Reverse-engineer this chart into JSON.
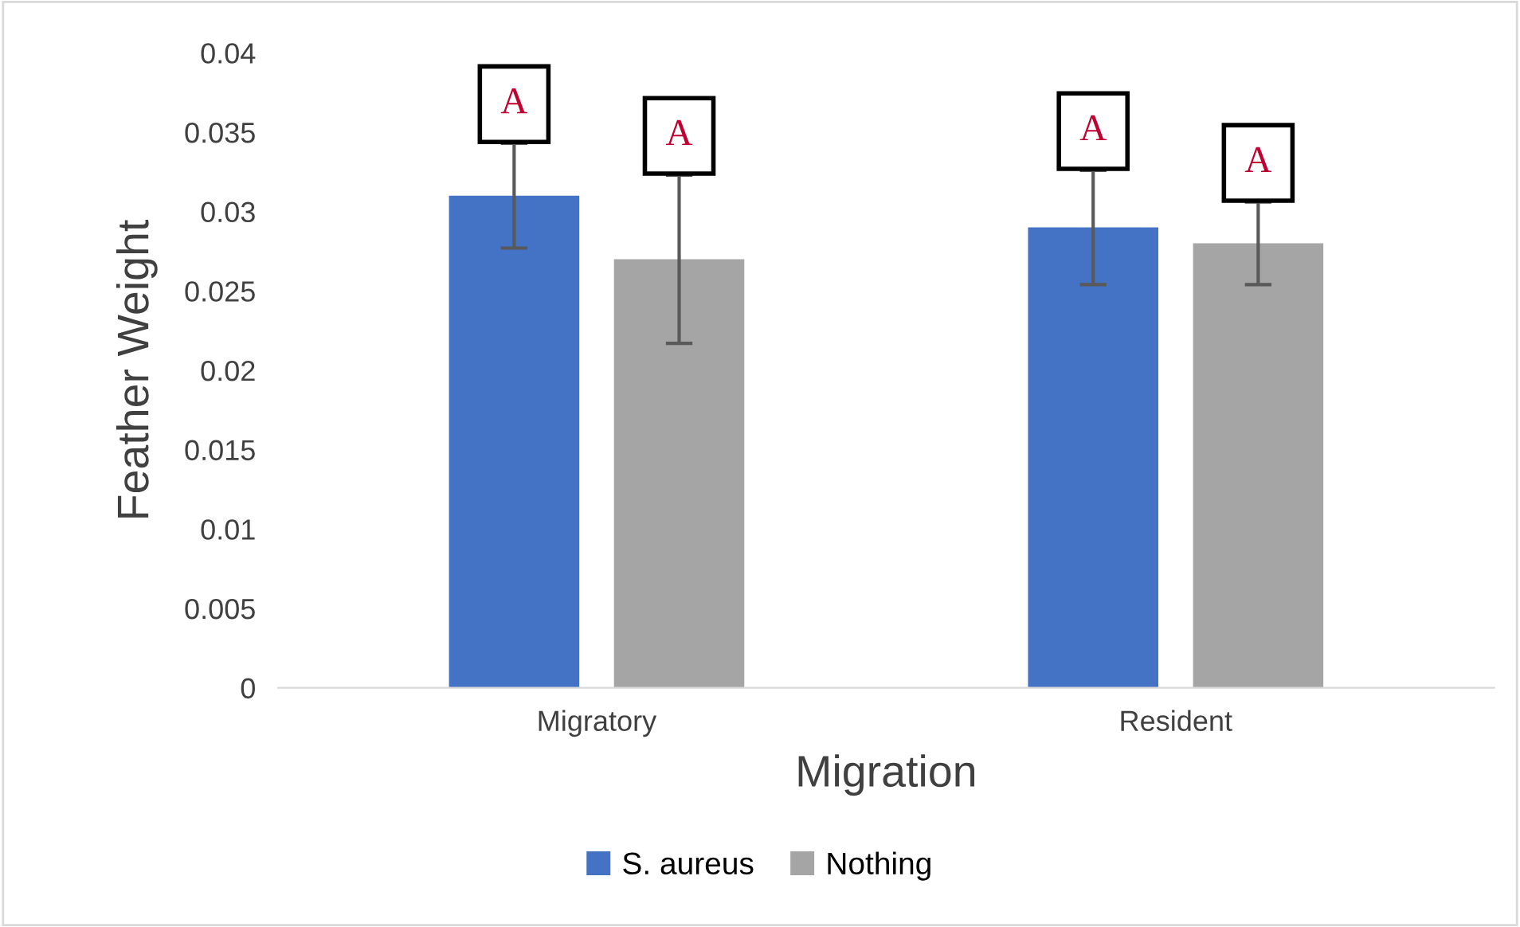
{
  "chart_data": {
    "type": "bar",
    "xlabel": "Migration",
    "ylabel": "Feather Weight",
    "categories": [
      "Migratory",
      "Resident"
    ],
    "series": [
      {
        "name": "S. aureus",
        "color": "#4472c4",
        "values": [
          0.031,
          0.029
        ],
        "errors": [
          0.0033,
          0.0036
        ]
      },
      {
        "name": "Nothing",
        "color": "#a5a5a5",
        "values": [
          0.027,
          0.028
        ],
        "errors": [
          0.0053,
          0.0026
        ]
      }
    ],
    "ylim": [
      0,
      0.04
    ],
    "yticks": [
      0,
      0.005,
      0.01,
      0.015,
      0.02,
      0.025,
      0.03,
      0.035,
      0.04
    ],
    "annotations": [
      "A",
      "A",
      "A",
      "A"
    ],
    "grid": false,
    "legend": "bottom"
  }
}
